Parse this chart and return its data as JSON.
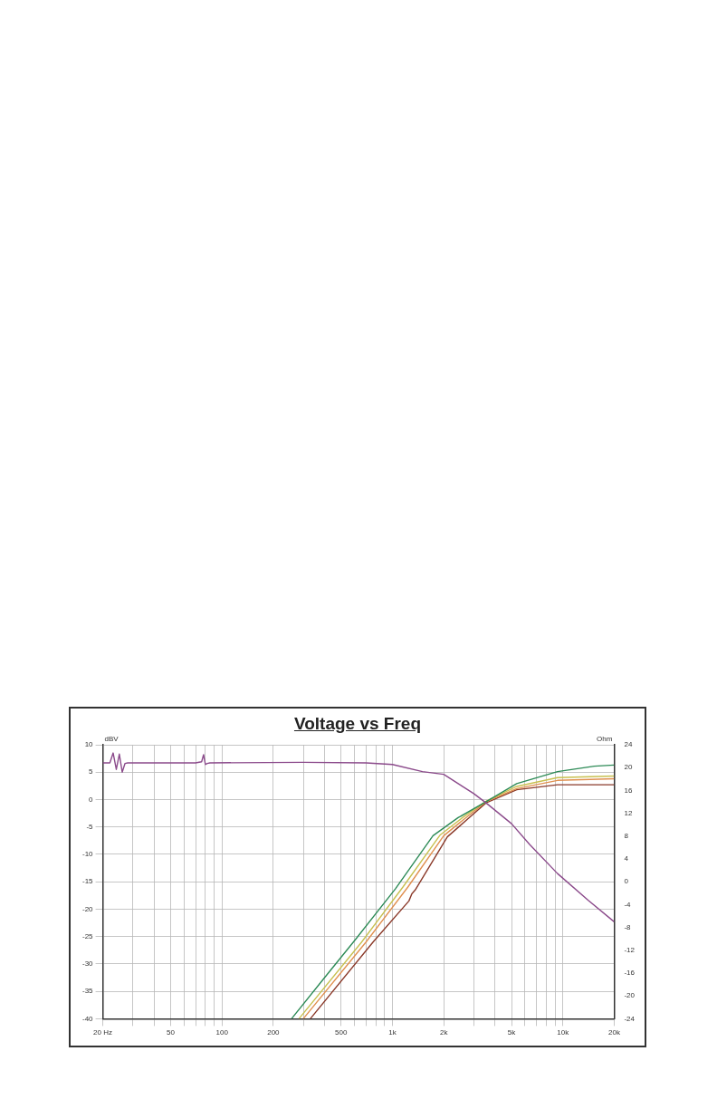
{
  "chart_data": {
    "type": "line",
    "title": "Voltage vs Freq",
    "ylabel": "dBV",
    "y2label": "Ohm",
    "xlim": [
      20,
      20000
    ],
    "log": "x",
    "grid": true,
    "legend": false,
    "marker": "none",
    "line_style": "solid",
    "xticks": [
      {
        "value": 20,
        "label": "20 Hz"
      },
      {
        "value": 30,
        "label": null
      },
      {
        "value": 40,
        "label": null
      },
      50,
      {
        "value": 60,
        "label": null
      },
      {
        "value": 70,
        "label": null
      },
      {
        "value": 80,
        "label": null
      },
      {
        "value": 90,
        "label": null
      },
      100,
      200,
      {
        "value": 300,
        "label": null
      },
      {
        "value": 400,
        "label": null
      },
      500,
      {
        "value": 600,
        "label": null
      },
      {
        "value": 700,
        "label": null
      },
      {
        "value": 800,
        "label": null
      },
      {
        "value": 900,
        "label": null
      },
      {
        "value": 1000,
        "label": "1k"
      },
      {
        "value": 2000,
        "label": "2k"
      },
      {
        "value": 3000,
        "label": null
      },
      {
        "value": 4000,
        "label": null
      },
      {
        "value": 5000,
        "label": "5k"
      },
      {
        "value": 6000,
        "label": null
      },
      {
        "value": 7000,
        "label": null
      },
      {
        "value": 8000,
        "label": null
      },
      {
        "value": 9000,
        "label": null
      },
      {
        "value": 10000,
        "label": "10k"
      },
      {
        "value": 20000,
        "label": "20k"
      }
    ],
    "ylim": [
      -40,
      10
    ],
    "yticks": [
      -40,
      -35,
      -30,
      -25,
      -20,
      -15,
      -10,
      -5,
      0,
      5,
      10
    ],
    "y2lim": [
      -24,
      24
    ],
    "y2ticks": [
      -24,
      -20,
      -16,
      -12,
      -8,
      -4,
      0,
      4,
      8,
      12,
      16,
      20,
      24
    ],
    "series": [
      {
        "color": "#8b4a8b",
        "x": [
          20,
          22,
          23,
          24,
          25,
          26,
          27,
          28,
          70,
          76,
          78,
          80,
          82,
          85,
          300,
          700,
          1000,
          1500,
          2000,
          3000,
          3540,
          5000,
          6380,
          9300,
          14100,
          20000
        ],
        "values": [
          6.7,
          6.7,
          8.5,
          5.5,
          8.3,
          5.0,
          6.6,
          6.7,
          6.7,
          6.9,
          8.2,
          6.4,
          6.6,
          6.7,
          6.8,
          6.7,
          6.4,
          5.1,
          4.6,
          1.1,
          -0.6,
          -4.4,
          -8.2,
          -13.5,
          -18.4,
          -22.3
        ]
      },
      {
        "color": "#2e8b57",
        "x": [
          256,
          400,
          608,
          1040,
          1730,
          2430,
          3540,
          5360,
          9300,
          15300,
          20000
        ],
        "values": [
          -40,
          -32.5,
          -25.5,
          -16.3,
          -6.6,
          -3.3,
          -0.4,
          2.9,
          5.1,
          6.1,
          6.3
        ]
      },
      {
        "color": "#c8c050",
        "x": [
          283,
          660,
          1150,
          1900,
          2600,
          3540,
          5360,
          9300,
          20000
        ],
        "values": [
          -40,
          -26,
          -16,
          -6.5,
          -3.2,
          -0.3,
          2.4,
          4.0,
          4.3
        ]
      },
      {
        "color": "#e09050",
        "x": [
          300,
          700,
          1230,
          2000,
          2700,
          3540,
          5360,
          9300,
          20000
        ],
        "values": [
          -40,
          -26,
          -16,
          -6.6,
          -3.3,
          -0.4,
          2.0,
          3.5,
          3.8
        ]
      },
      {
        "color": "#8b3a2a",
        "x": [
          330,
          770,
          1250,
          1300,
          1360,
          2100,
          2800,
          3540,
          5360,
          9300,
          20000
        ],
        "values": [
          -40,
          -26,
          -18.5,
          -17.2,
          -16.5,
          -6.8,
          -3.4,
          -0.6,
          1.8,
          2.7,
          2.7
        ]
      }
    ]
  }
}
